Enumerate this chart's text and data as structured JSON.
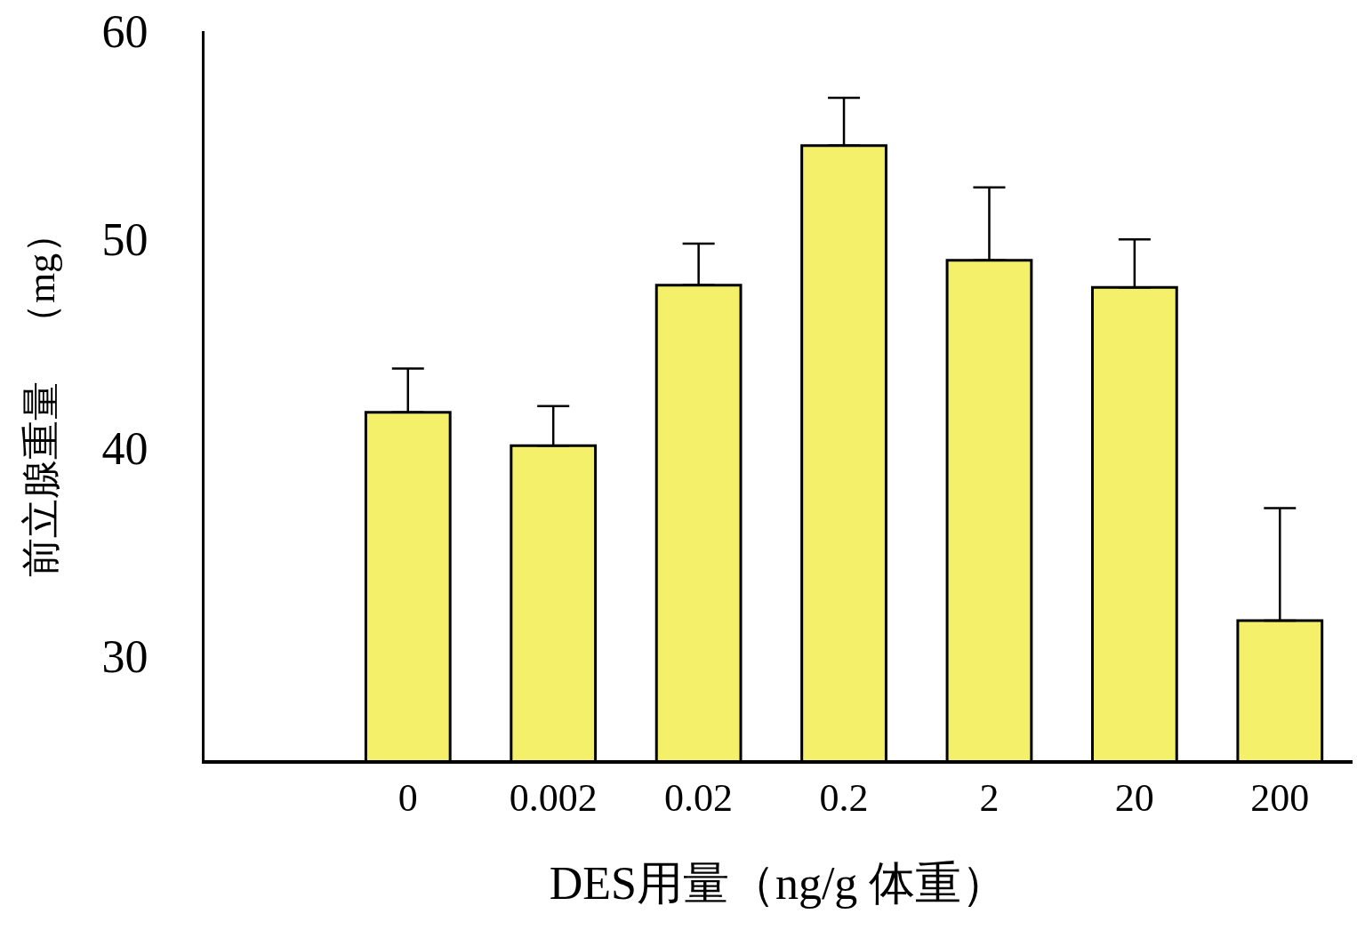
{
  "chart_data": {
    "type": "bar",
    "xlabel": "DES用量（ng/g 体重）",
    "ylabel": "前立腺重量　（mg）",
    "categories": [
      "0",
      "0.002",
      "0.02",
      "0.2",
      "2",
      "20",
      "200"
    ],
    "values": [
      41.7,
      40.1,
      47.8,
      54.5,
      49.0,
      47.7,
      31.7
    ],
    "errors": [
      [
        41.7,
        43.8
      ],
      [
        40.1,
        42.0
      ],
      [
        47.8,
        49.8
      ],
      [
        54.5,
        56.8
      ],
      [
        49.0,
        52.5
      ],
      [
        47.7,
        50.0
      ],
      [
        31.7,
        37.1
      ]
    ],
    "color": "#f4f06a",
    "ylim": [
      25,
      60
    ],
    "yticks": [
      30,
      40,
      50,
      60
    ]
  }
}
